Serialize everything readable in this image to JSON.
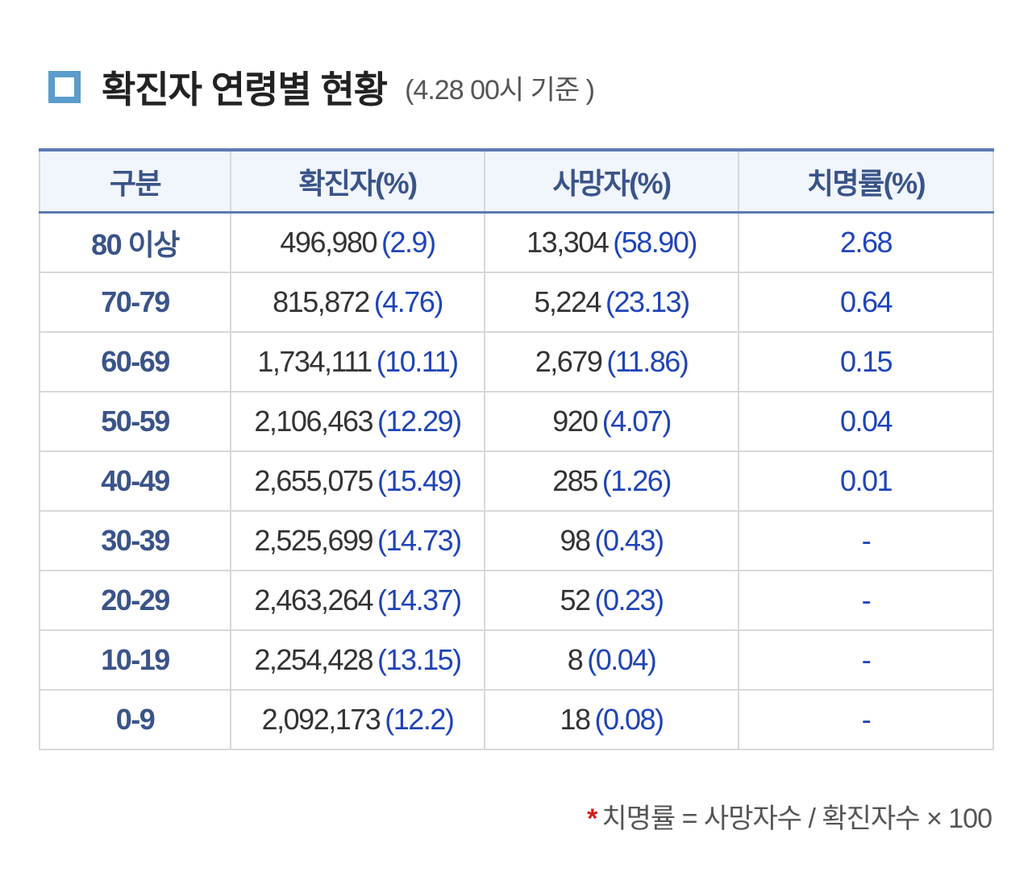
{
  "title": {
    "icon": "square-bullet-icon",
    "main": "확진자 연령별 현황",
    "sub": "(4.28 00시 기준 )"
  },
  "colors": {
    "accent": "#5a9ccb",
    "header_text": "#3a5488",
    "header_bg": "#f1f5fc",
    "value_blue": "#1f44b8",
    "note_star": "#d21f1f"
  },
  "table": {
    "headers": [
      "구분",
      "확진자(%)",
      "사망자(%)",
      "치명률(%)"
    ],
    "rows": [
      {
        "group": "80 이상",
        "cases": "496,980",
        "cases_pct": "(2.9)",
        "deaths": "13,304",
        "deaths_pct": "(58.90)",
        "fatality": "2.68"
      },
      {
        "group": "70-79",
        "cases": "815,872",
        "cases_pct": "(4.76)",
        "deaths": "5,224",
        "deaths_pct": "(23.13)",
        "fatality": "0.64"
      },
      {
        "group": "60-69",
        "cases": "1,734,111",
        "cases_pct": "(10.11)",
        "deaths": "2,679",
        "deaths_pct": "(11.86)",
        "fatality": "0.15"
      },
      {
        "group": "50-59",
        "cases": "2,106,463",
        "cases_pct": "(12.29)",
        "deaths": "920",
        "deaths_pct": "(4.07)",
        "fatality": "0.04"
      },
      {
        "group": "40-49",
        "cases": "2,655,075",
        "cases_pct": "(15.49)",
        "deaths": "285",
        "deaths_pct": "(1.26)",
        "fatality": "0.01"
      },
      {
        "group": "30-39",
        "cases": "2,525,699",
        "cases_pct": "(14.73)",
        "deaths": "98",
        "deaths_pct": "(0.43)",
        "fatality": "-"
      },
      {
        "group": "20-29",
        "cases": "2,463,264",
        "cases_pct": "(14.37)",
        "deaths": "52",
        "deaths_pct": "(0.23)",
        "fatality": "-"
      },
      {
        "group": "10-19",
        "cases": "2,254,428",
        "cases_pct": "(13.15)",
        "deaths": "8",
        "deaths_pct": "(0.04)",
        "fatality": "-"
      },
      {
        "group": "0-9",
        "cases": "2,092,173",
        "cases_pct": "(12.2)",
        "deaths": "18",
        "deaths_pct": "(0.08)",
        "fatality": "-"
      }
    ]
  },
  "note": {
    "star": "*",
    "text": "치명률 = 사망자수 / 확진자수 × 100"
  }
}
